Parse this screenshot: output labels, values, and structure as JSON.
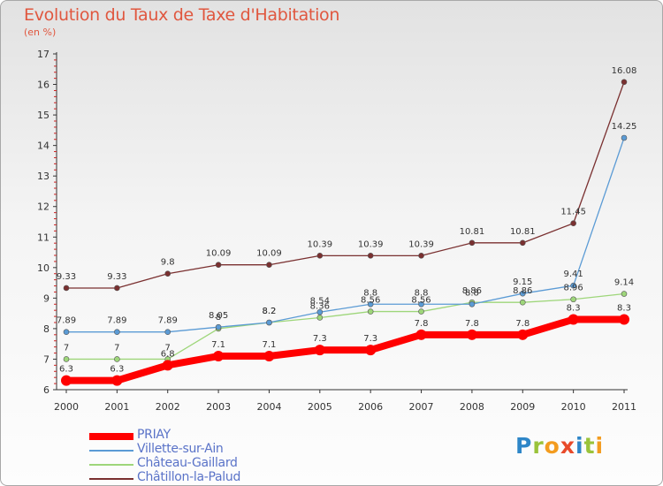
{
  "chart_data": {
    "type": "line",
    "title": "Evolution du Taux de Taxe d'Habitation",
    "subtitle": "(en %)",
    "xlabel": "",
    "ylabel": "",
    "x": [
      "2000",
      "2001",
      "2002",
      "2003",
      "2004",
      "2005",
      "2006",
      "2007",
      "2008",
      "2009",
      "2010",
      "2011"
    ],
    "ylim": [
      6,
      17
    ],
    "yticks": [
      6,
      7,
      8,
      9,
      10,
      11,
      12,
      13,
      14,
      15,
      16,
      17
    ],
    "grid": false,
    "legend_position": "bottom-left",
    "series": [
      {
        "name": "PRIAY",
        "color": "#ff0000",
        "labels": [
          "6.3",
          "6.3",
          "6.8",
          "7.1",
          "7.1",
          "7.3",
          "7.3",
          "7.8",
          "7.8",
          "7.8",
          "8.3",
          "8.3"
        ],
        "values": [
          6.3,
          6.3,
          6.8,
          7.1,
          7.1,
          7.3,
          7.3,
          7.8,
          7.8,
          7.8,
          8.3,
          8.3
        ]
      },
      {
        "name": "Villette-sur-Ain",
        "color": "#5b9bd5",
        "labels": [
          "7.89",
          "7.89",
          "7.89",
          "8.05",
          "8.2",
          "8.54",
          "8.8",
          "8.8",
          "8.8",
          "9.15",
          "9.41",
          "14.25"
        ],
        "values": [
          7.89,
          7.89,
          7.89,
          8.05,
          8.2,
          8.54,
          8.8,
          8.8,
          8.8,
          9.15,
          9.41,
          14.25
        ]
      },
      {
        "name": "Château-Gaillard",
        "color": "#9ed67a",
        "labels": [
          "7",
          "7",
          "7",
          "8",
          "8.2",
          "8.36",
          "8.56",
          "8.56",
          "8.86",
          "8.86",
          "8.96",
          "9.14"
        ],
        "values": [
          7,
          7,
          7,
          8,
          8.2,
          8.36,
          8.56,
          8.56,
          8.86,
          8.86,
          8.96,
          9.14
        ]
      },
      {
        "name": "Châtillon-la-Palud",
        "color": "#7a3030",
        "labels": [
          "9.33",
          "9.33",
          "9.8",
          "10.09",
          "10.09",
          "10.39",
          "10.39",
          "10.39",
          "10.81",
          "10.81",
          "11.45",
          "16.08"
        ],
        "values": [
          9.33,
          9.33,
          9.8,
          10.09,
          10.09,
          10.39,
          10.39,
          10.39,
          10.81,
          10.81,
          11.45,
          16.08
        ]
      }
    ]
  },
  "legend": {
    "items": [
      {
        "label": "PRIAY",
        "color": "#ff0000"
      },
      {
        "label": "Villette-sur-Ain",
        "color": "#5b9bd5"
      },
      {
        "label": "Château-Gaillard",
        "color": "#9ed67a"
      },
      {
        "label": "Châtillon-la-Palud",
        "color": "#7a3030"
      }
    ]
  },
  "logo": {
    "letters": [
      {
        "char": "P",
        "color": "#2e86c8"
      },
      {
        "char": "r",
        "color": "#9ac33b"
      },
      {
        "char": "o",
        "color": "#f39c1f"
      },
      {
        "char": "x",
        "color": "#e84a2a"
      },
      {
        "char": "i",
        "color": "#2e86c8"
      },
      {
        "char": "t",
        "color": "#9ac33b"
      },
      {
        "char": "i",
        "color": "#f39c1f"
      }
    ]
  }
}
